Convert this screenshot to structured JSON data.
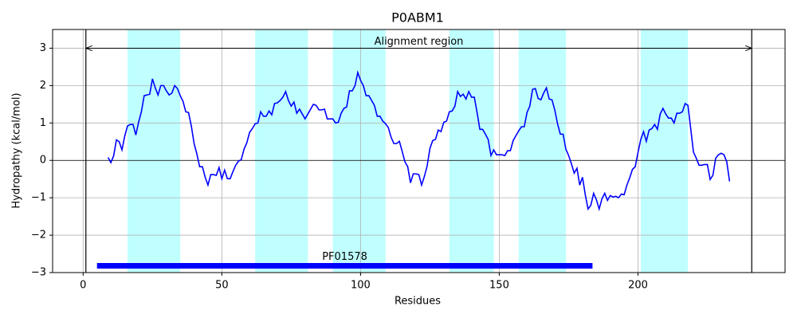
{
  "chart_data": {
    "type": "line",
    "title": "P0ABM1",
    "xlabel": "Residues",
    "ylabel": "Hydropathy (kcal/mol)",
    "color": "#0000ff",
    "x": [
      9,
      10,
      11,
      12,
      13,
      14,
      15,
      16,
      17,
      18,
      19,
      20,
      21,
      22,
      23,
      24,
      25,
      26,
      27,
      28,
      29,
      30,
      31,
      32,
      33,
      34,
      35,
      36,
      37,
      38,
      39,
      40,
      41,
      42,
      43,
      44,
      45,
      46,
      47,
      48,
      49,
      50,
      51,
      52,
      53,
      54,
      55,
      56,
      57,
      58,
      59,
      60,
      61,
      62,
      63,
      64,
      65,
      66,
      67,
      68,
      69,
      70,
      71,
      72,
      73,
      74,
      75,
      76,
      77,
      78,
      79,
      80,
      81,
      82,
      83,
      84,
      85,
      86,
      87,
      88,
      89,
      90,
      91,
      92,
      93,
      94,
      95,
      96,
      97,
      98,
      99,
      100,
      101,
      102,
      103,
      104,
      105,
      106,
      107,
      108,
      109,
      110,
      111,
      112,
      113,
      114,
      115,
      116,
      117,
      118,
      119,
      120,
      121,
      122,
      123,
      124,
      125,
      126,
      127,
      128,
      129,
      130,
      131,
      132,
      133,
      134,
      135,
      136,
      137,
      138,
      139,
      140,
      141,
      142,
      143,
      144,
      145,
      146,
      147,
      148,
      149,
      150,
      151,
      152,
      153,
      154,
      155,
      156,
      157,
      158,
      159,
      160,
      161,
      162,
      163,
      164,
      165,
      166,
      167,
      168,
      169,
      170,
      171,
      172,
      173,
      174,
      175,
      176,
      177,
      178,
      179,
      180,
      181,
      182,
      183,
      184,
      185,
      186,
      187,
      188,
      189,
      190,
      191,
      192,
      193,
      194,
      195,
      196,
      197,
      198,
      199,
      200,
      201,
      202,
      203,
      204,
      205,
      206,
      207,
      208,
      209,
      210,
      211,
      212,
      213,
      214,
      215,
      216,
      217,
      218,
      219,
      220,
      221,
      222,
      223,
      224,
      225,
      226,
      227,
      228,
      229,
      230,
      231,
      232,
      233
    ],
    "values": [
      0.08,
      -0.06,
      0.12,
      0.55,
      0.5,
      0.28,
      0.65,
      0.92,
      0.96,
      0.96,
      0.68,
      1.02,
      1.3,
      1.73,
      1.75,
      1.77,
      2.18,
      1.94,
      1.75,
      2.0,
      2.0,
      1.86,
      1.75,
      1.8,
      2.0,
      1.92,
      1.73,
      1.58,
      1.3,
      1.28,
      0.92,
      0.45,
      0.17,
      -0.17,
      -0.17,
      -0.45,
      -0.66,
      -0.38,
      -0.38,
      -0.4,
      -0.19,
      -0.49,
      -0.26,
      -0.49,
      -0.49,
      -0.3,
      -0.13,
      -0.02,
      0.02,
      0.3,
      0.47,
      0.75,
      0.85,
      0.98,
      1.0,
      1.3,
      1.18,
      1.18,
      1.32,
      1.22,
      1.52,
      1.54,
      1.6,
      1.69,
      1.84,
      1.6,
      1.45,
      1.56,
      1.26,
      1.37,
      1.24,
      1.11,
      1.24,
      1.37,
      1.5,
      1.47,
      1.35,
      1.35,
      1.37,
      1.11,
      1.11,
      1.11,
      1.0,
      1.02,
      1.26,
      1.39,
      1.43,
      1.86,
      1.86,
      2.0,
      2.35,
      2.14,
      2.0,
      1.73,
      1.73,
      1.6,
      1.47,
      1.18,
      1.18,
      1.05,
      0.98,
      0.88,
      0.62,
      0.45,
      0.45,
      0.51,
      0.24,
      -0.04,
      -0.17,
      -0.6,
      -0.36,
      -0.36,
      -0.38,
      -0.66,
      -0.43,
      -0.15,
      0.32,
      0.53,
      0.56,
      0.81,
      0.77,
      1.02,
      1.05,
      1.3,
      1.32,
      1.45,
      1.84,
      1.71,
      1.77,
      1.64,
      1.84,
      1.69,
      1.69,
      1.28,
      0.83,
      0.83,
      0.7,
      0.56,
      0.13,
      0.28,
      0.15,
      0.15,
      0.15,
      0.13,
      0.26,
      0.26,
      0.53,
      0.66,
      0.79,
      0.9,
      0.9,
      1.28,
      1.45,
      1.9,
      1.92,
      1.66,
      1.62,
      1.8,
      1.94,
      1.64,
      1.62,
      1.35,
      0.98,
      0.7,
      0.7,
      0.3,
      0.13,
      -0.09,
      -0.34,
      -0.21,
      -0.66,
      -0.45,
      -0.92,
      -1.3,
      -1.2,
      -0.88,
      -1.05,
      -1.3,
      -1.03,
      -0.88,
      -1.07,
      -0.94,
      -0.98,
      -0.96,
      -1.0,
      -0.9,
      -0.92,
      -0.66,
      -0.47,
      -0.24,
      -0.17,
      0.21,
      0.56,
      0.77,
      0.51,
      0.81,
      0.85,
      0.96,
      0.83,
      1.24,
      1.39,
      1.24,
      1.13,
      1.13,
      1.0,
      1.26,
      1.26,
      1.3,
      1.52,
      1.47,
      0.85,
      0.22,
      0.06,
      -0.13,
      -0.13,
      -0.11,
      -0.11,
      -0.51,
      -0.4,
      0.06,
      0.15,
      0.19,
      0.15,
      -0.04,
      -0.56
    ],
    "xlim": [
      -11,
      253
    ],
    "ylim": [
      -3,
      3.5
    ],
    "xticks": [
      0,
      50,
      100,
      150,
      200
    ],
    "yticks": [
      {
        "value": -3,
        "label": "−3"
      },
      {
        "value": -2,
        "label": "−2"
      },
      {
        "value": -1,
        "label": "−1"
      },
      0,
      1,
      2,
      3
    ],
    "grid": true,
    "zero_line": 0,
    "regions": [
      [
        16,
        35
      ],
      [
        62,
        81
      ],
      [
        90,
        109
      ],
      [
        132,
        148
      ],
      [
        157,
        174
      ],
      [
        201,
        218
      ]
    ],
    "region_color": "#bfffff",
    "vlines": [
      1,
      241
    ],
    "arrow": {
      "start": 1,
      "end": 241,
      "y": 3,
      "label": "Alignment region"
    },
    "bars": [
      {
        "start": 5,
        "end": 183.6,
        "y": -2.82,
        "label": "PF01578",
        "color": "#0000ff"
      }
    ]
  }
}
